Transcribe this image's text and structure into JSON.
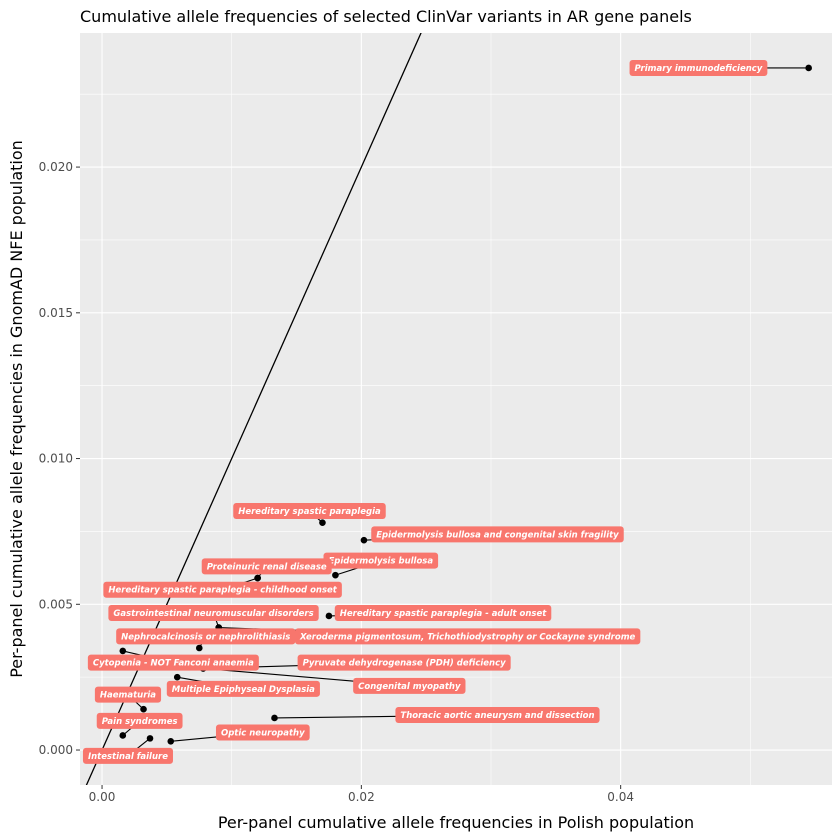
{
  "chart_data": {
    "type": "scatter",
    "title": "Cumulative allele frequencies of selected ClinVar variants in AR gene panels",
    "xlabel": "Per-panel cumulative allele frequencies in Polish population",
    "ylabel": "Per-panel cumulative allele frequencies in GnomAD NFE population",
    "xlim": [
      -0.0017,
      0.0563
    ],
    "ylim": [
      -0.0012,
      0.0246
    ],
    "x_ticks": [
      0.0,
      0.02,
      0.04
    ],
    "x_tick_labels": [
      "0.00",
      "0.02",
      "0.04"
    ],
    "y_ticks": [
      0.0,
      0.005,
      0.01,
      0.015,
      0.02
    ],
    "y_tick_labels": [
      "0.000",
      "0.005",
      "0.010",
      "0.015",
      "0.020"
    ],
    "reference_line": {
      "intercept": 0,
      "slope": 1
    },
    "grid": true,
    "label_color": "#F8766D",
    "points": [
      {
        "x": 0.0545,
        "y": 0.0234,
        "label": "Primary immunodeficiency",
        "lx": 0.046,
        "ly": 0.0234
      },
      {
        "x": 0.017,
        "y": 0.0078,
        "label": "Hereditary spastic paraplegia",
        "lx": 0.016,
        "ly": 0.0082
      },
      {
        "x": 0.0202,
        "y": 0.0072,
        "label": "Epidermolysis bullosa and congenital skin fragility",
        "lx": 0.0305,
        "ly": 0.0074
      },
      {
        "x": 0.018,
        "y": 0.006,
        "label": "Epidermolysis bullosa",
        "lx": 0.0215,
        "ly": 0.0065
      },
      {
        "x": 0.012,
        "y": 0.0059,
        "label": "Proteinuric renal disease",
        "lx": 0.0127,
        "ly": 0.0063
      },
      {
        "x": 0.012,
        "y": 0.0059,
        "label": "Hereditary spastic paraplegia - childhood onset",
        "lx": 0.0093,
        "ly": 0.0055
      },
      {
        "x": 0.0175,
        "y": 0.0046,
        "label": "Hereditary spastic paraplegia - adult onset",
        "lx": 0.0263,
        "ly": 0.0047
      },
      {
        "x": 0.009,
        "y": 0.0042,
        "label": "Gastrointestinal neuromuscular disorders",
        "lx": 0.0086,
        "ly": 0.0047
      },
      {
        "x": 0.0075,
        "y": 0.0035,
        "label": "Nephrocalcinosis or nephrolithiasis",
        "lx": 0.008,
        "ly": 0.0039
      },
      {
        "x": 0.009,
        "y": 0.0042,
        "label": "Xeroderma pigmentosum, Trichothiodystrophy or Cockayne syndrome",
        "lx": 0.0282,
        "ly": 0.0039
      },
      {
        "x": 0.0016,
        "y": 0.0034,
        "label": "Cytopenia - NOT Fanconi anaemia",
        "lx": 0.0055,
        "ly": 0.003
      },
      {
        "x": 0.0078,
        "y": 0.0028,
        "label": "Pyruvate dehydrogenase (PDH) deficiency",
        "lx": 0.0233,
        "ly": 0.003
      },
      {
        "x": 0.0058,
        "y": 0.0025,
        "label": "Multiple Epiphyseal Dysplasia",
        "lx": 0.0109,
        "ly": 0.0021
      },
      {
        "x": 0.0078,
        "y": 0.0028,
        "label": "Congenital myopathy",
        "lx": 0.0237,
        "ly": 0.0022
      },
      {
        "x": 0.0032,
        "y": 0.0014,
        "label": "Haematuria",
        "lx": 0.002,
        "ly": 0.0019
      },
      {
        "x": 0.0133,
        "y": 0.0011,
        "label": "Thoracic aortic aneurysm and dissection",
        "lx": 0.0305,
        "ly": 0.0012
      },
      {
        "x": 0.0016,
        "y": 0.0005,
        "label": "Pain syndromes",
        "lx": 0.0029,
        "ly": 0.001
      },
      {
        "x": 0.0053,
        "y": 0.0003,
        "label": "Optic neuropathy",
        "lx": 0.0124,
        "ly": 0.0006
      },
      {
        "x": 0.0037,
        "y": 0.0004,
        "label": "Intestinal failure",
        "lx": 0.002,
        "ly": -0.0002
      }
    ]
  }
}
